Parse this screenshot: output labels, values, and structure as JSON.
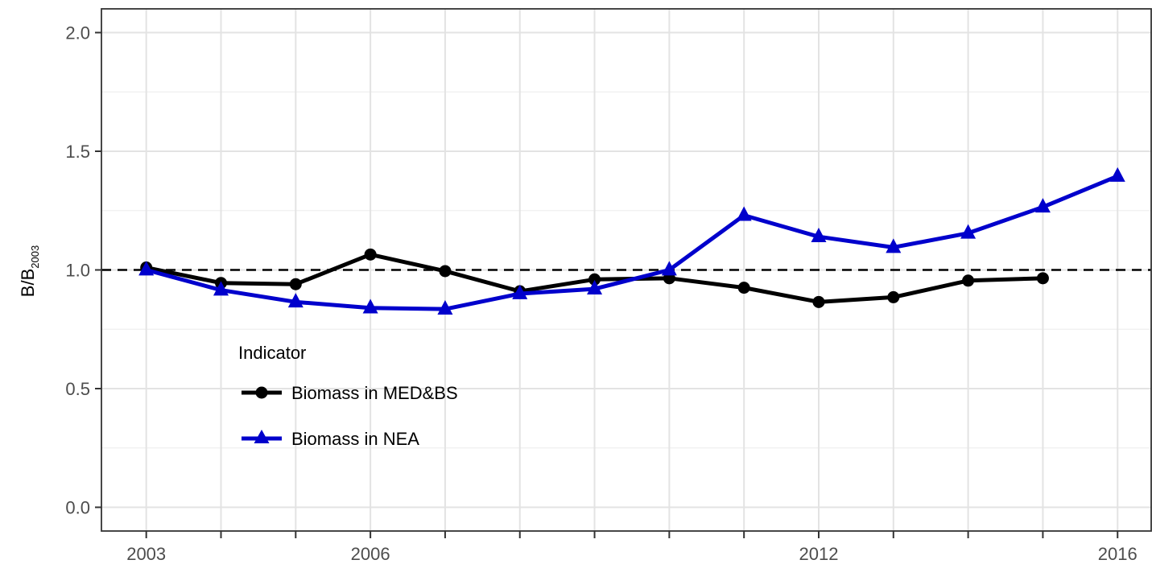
{
  "chart_data": {
    "type": "line",
    "title": "",
    "xlabel": "",
    "ylabel_main": "B/B",
    "ylabel_sub": "2003",
    "x": [
      2003,
      2004,
      2005,
      2006,
      2007,
      2008,
      2009,
      2010,
      2011,
      2012,
      2013,
      2014,
      2015,
      2016
    ],
    "xlim": [
      2002.4,
      2016.45
    ],
    "ylim": [
      -0.1,
      2.1
    ],
    "x_ticks": [
      2003,
      2004,
      2005,
      2006,
      2007,
      2008,
      2009,
      2010,
      2011,
      2012,
      2013,
      2014,
      2015,
      2016
    ],
    "x_tick_labels": [
      "2003",
      "",
      "",
      "2006",
      "",
      "",
      "",
      "",
      "",
      "2012",
      "",
      "",
      "",
      "2016"
    ],
    "y_ticks": [
      0.0,
      0.5,
      1.0,
      1.5,
      2.0
    ],
    "y_tick_labels": [
      "0.0",
      "0.5",
      "1.0",
      "1.5",
      "2.0"
    ],
    "reference_line": 1.0,
    "grid": true,
    "legend": {
      "title": "Indicator",
      "placement": "inside-left"
    },
    "series": [
      {
        "name": "Biomass in MED&BS",
        "color": "#000000",
        "marker": "circle",
        "values": [
          1.01,
          0.945,
          0.94,
          1.065,
          0.995,
          0.91,
          0.96,
          0.965,
          0.925,
          0.865,
          0.885,
          0.955,
          0.965,
          null
        ]
      },
      {
        "name": "Biomass in NEA",
        "color": "#0000cc",
        "marker": "triangle",
        "values": [
          1.0,
          0.915,
          0.865,
          0.84,
          0.835,
          0.9,
          0.92,
          1.0,
          1.23,
          1.14,
          1.095,
          1.155,
          1.265,
          1.395
        ]
      }
    ]
  }
}
